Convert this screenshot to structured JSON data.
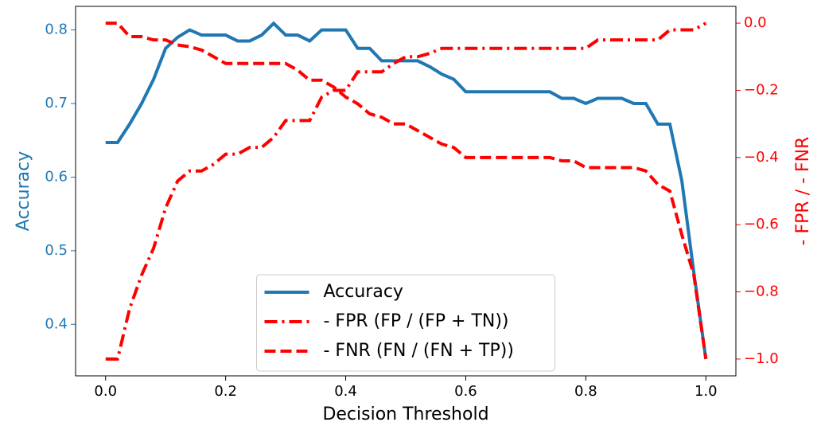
{
  "chart_data": {
    "type": "line",
    "xlabel": "Decision Threshold",
    "ylabel": "Accuracy",
    "y2label": "- FPR / - FNR",
    "y_axis_color": "#1f77b4",
    "y2_axis_color": "#ff0000",
    "x": [
      0.0,
      0.02,
      0.04,
      0.06,
      0.08,
      0.1,
      0.12,
      0.14,
      0.16,
      0.18,
      0.2,
      0.22,
      0.24,
      0.26,
      0.28,
      0.3,
      0.32,
      0.34,
      0.36,
      0.38,
      0.4,
      0.42,
      0.44,
      0.46,
      0.48,
      0.5,
      0.52,
      0.54,
      0.56,
      0.58,
      0.6,
      0.62,
      0.64,
      0.66,
      0.68,
      0.7,
      0.72,
      0.74,
      0.76,
      0.78,
      0.8,
      0.82,
      0.84,
      0.86,
      0.88,
      0.9,
      0.92,
      0.94,
      0.96,
      0.98,
      1.0
    ],
    "series": [
      {
        "name": "Accuracy",
        "color": "#1f77b4",
        "axis": "y",
        "linestyle": "solid",
        "values": [
          0.647,
          0.647,
          0.672,
          0.7,
          0.733,
          0.775,
          0.79,
          0.8,
          0.793,
          0.793,
          0.793,
          0.785,
          0.785,
          0.793,
          0.809,
          0.793,
          0.793,
          0.785,
          0.8,
          0.8,
          0.8,
          0.775,
          0.775,
          0.758,
          0.758,
          0.758,
          0.758,
          0.75,
          0.74,
          0.733,
          0.716,
          0.716,
          0.716,
          0.716,
          0.716,
          0.716,
          0.716,
          0.716,
          0.707,
          0.707,
          0.7,
          0.707,
          0.707,
          0.707,
          0.7,
          0.7,
          0.672,
          0.672,
          0.595,
          0.47,
          0.353
        ]
      },
      {
        "name": "- FPR (FP / (FP + TN))",
        "color": "#ff0000",
        "axis": "y2",
        "linestyle": "dashdot",
        "values": [
          -1.0,
          -1.0,
          -0.85,
          -0.75,
          -0.67,
          -0.55,
          -0.47,
          -0.44,
          -0.44,
          -0.42,
          -0.39,
          -0.39,
          -0.37,
          -0.37,
          -0.34,
          -0.29,
          -0.29,
          -0.29,
          -0.22,
          -0.2,
          -0.2,
          -0.145,
          -0.145,
          -0.145,
          -0.12,
          -0.1,
          -0.1,
          -0.09,
          -0.075,
          -0.075,
          -0.075,
          -0.075,
          -0.075,
          -0.075,
          -0.075,
          -0.075,
          -0.075,
          -0.075,
          -0.075,
          -0.075,
          -0.075,
          -0.05,
          -0.05,
          -0.05,
          -0.05,
          -0.05,
          -0.05,
          -0.02,
          -0.02,
          -0.02,
          0.0
        ]
      },
      {
        "name": "- FNR (FN / (FN + TP))",
        "color": "#ff0000",
        "axis": "y2",
        "linestyle": "dashed",
        "values": [
          0.0,
          0.0,
          -0.04,
          -0.04,
          -0.05,
          -0.05,
          -0.065,
          -0.07,
          -0.08,
          -0.1,
          -0.12,
          -0.12,
          -0.12,
          -0.12,
          -0.12,
          -0.12,
          -0.14,
          -0.17,
          -0.17,
          -0.19,
          -0.22,
          -0.24,
          -0.27,
          -0.28,
          -0.3,
          -0.3,
          -0.32,
          -0.34,
          -0.36,
          -0.37,
          -0.4,
          -0.4,
          -0.4,
          -0.4,
          -0.4,
          -0.4,
          -0.4,
          -0.4,
          -0.41,
          -0.41,
          -0.43,
          -0.43,
          -0.43,
          -0.43,
          -0.43,
          -0.44,
          -0.48,
          -0.5,
          -0.63,
          -0.75,
          -1.0
        ]
      }
    ],
    "xlim": [
      -0.05,
      1.05
    ],
    "xticks": [
      {
        "value": 0,
        "label": "0.0"
      },
      0.2,
      0.4,
      0.6,
      0.8,
      {
        "value": 1,
        "label": "1.0"
      }
    ],
    "ylim": [
      0.33,
      0.832
    ],
    "yticks": [
      0.4,
      0.5,
      0.6,
      0.7,
      0.8
    ],
    "y2lim": [
      -1.05,
      0.05
    ],
    "y2ticks": [
      {
        "value": -1,
        "label": "−1.0"
      },
      {
        "value": -0.8,
        "label": "−0.8"
      },
      {
        "value": -0.6,
        "label": "−0.6"
      },
      {
        "value": -0.4,
        "label": "−0.4"
      },
      {
        "value": -0.2,
        "label": "−0.2"
      },
      {
        "value": 0,
        "label": "0.0"
      }
    ],
    "legend": "lower center",
    "grid": false
  }
}
